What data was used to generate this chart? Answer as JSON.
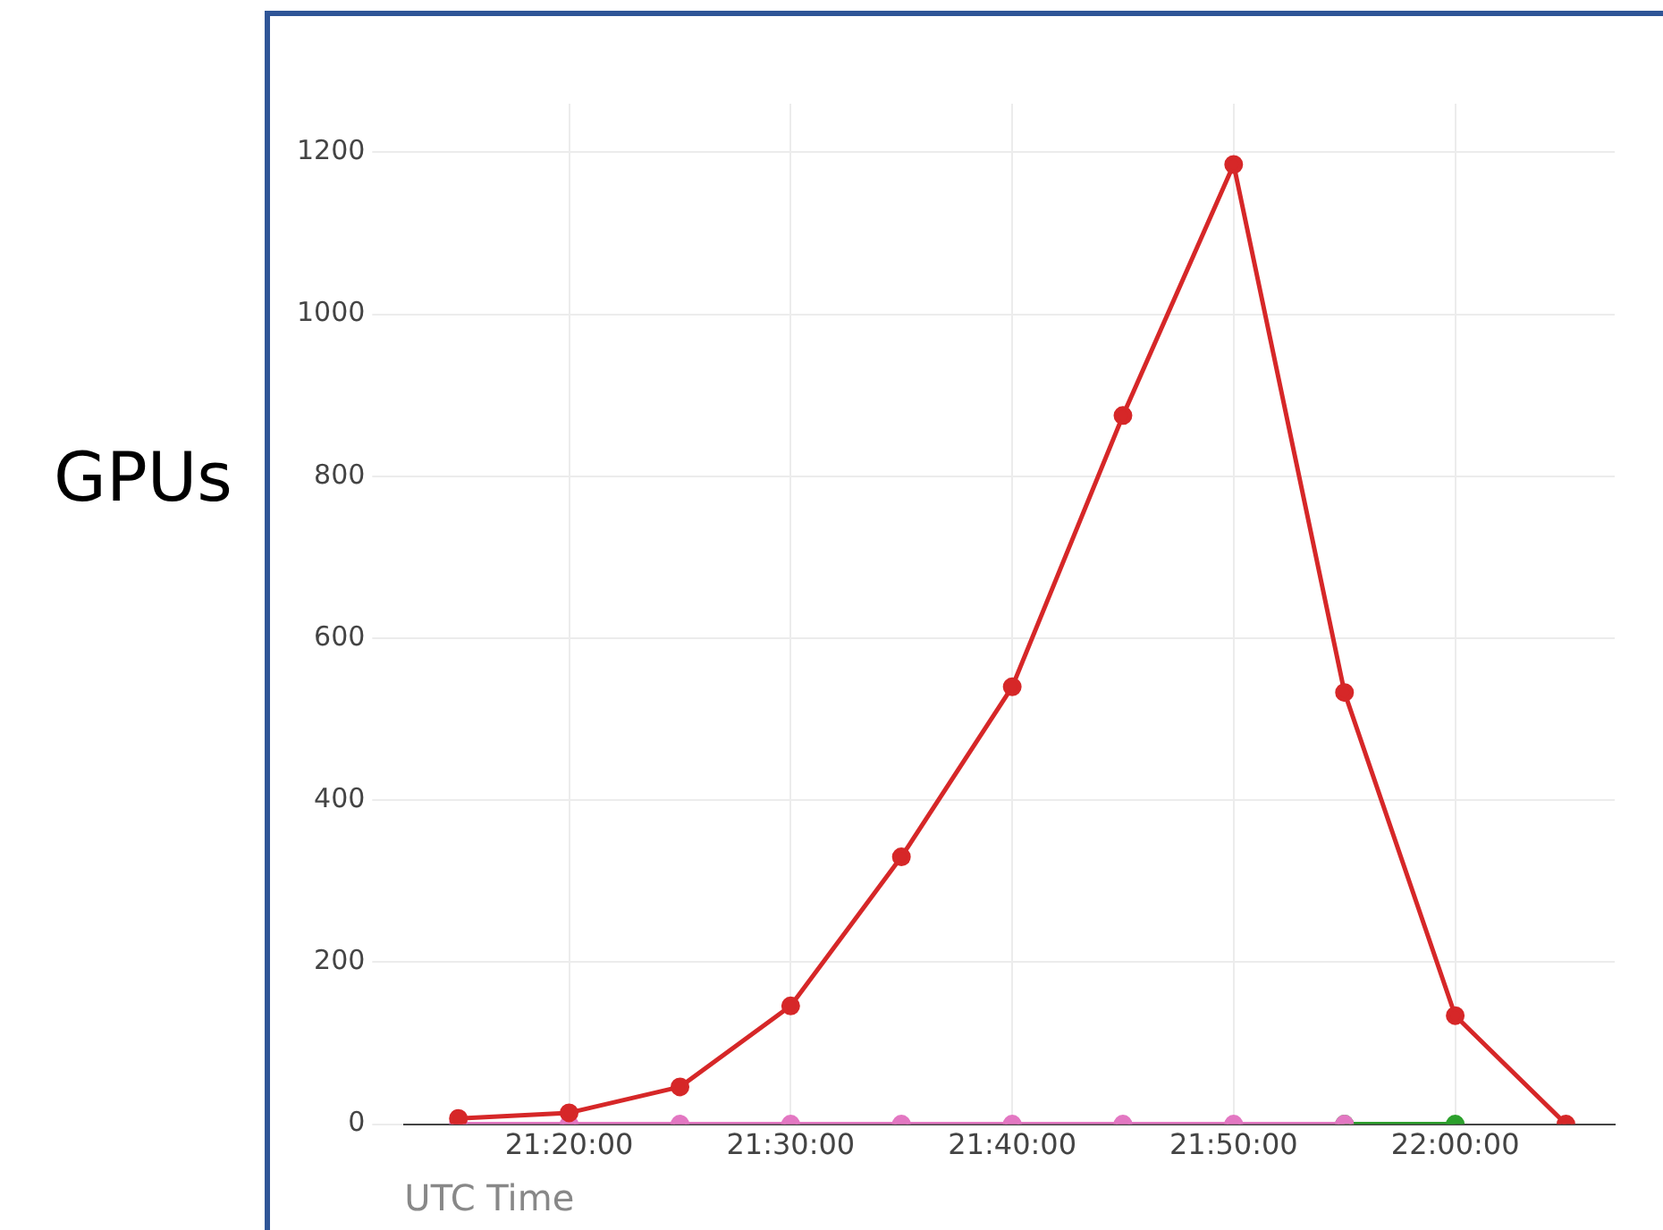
{
  "chart_data": {
    "type": "line",
    "xlabel": "UTC Time",
    "ylabel": "GPUs",
    "xlim": [
      21.2094,
      22.12
    ],
    "ylim": [
      0,
      1260
    ],
    "xticks": [
      {
        "value": 21.3333,
        "label": "21:20:00"
      },
      {
        "value": 21.5,
        "label": "21:30:00"
      },
      {
        "value": 21.6667,
        "label": "21:40:00"
      },
      {
        "value": 21.8333,
        "label": "21:50:00"
      },
      {
        "value": 22,
        "label": "22:00:00"
      }
    ],
    "yticks": [
      0,
      200,
      400,
      600,
      800,
      1000,
      1200
    ],
    "series": [
      {
        "color": "#d62728",
        "x": [
          21.25,
          21.3333,
          21.4167,
          21.5,
          21.5833,
          21.6667,
          21.75,
          21.8333,
          21.9167,
          22,
          22.0833
        ],
        "values": [
          7,
          14,
          46,
          146,
          330,
          540,
          875,
          1185,
          533,
          134,
          0
        ]
      },
      {
        "color": "#e377c2",
        "x": [
          21.25,
          21.3333,
          21.4167,
          21.5,
          21.5833,
          21.6667,
          21.75,
          21.8333,
          21.9167
        ],
        "values": [
          0,
          0,
          0,
          0,
          0,
          0,
          0,
          0,
          0
        ]
      },
      {
        "color": "#2ca02c",
        "x": [
          21.9167,
          22
        ],
        "values": [
          0,
          0
        ]
      }
    ],
    "grid": true,
    "legend": false,
    "marker": "circle",
    "line_style": "solid"
  }
}
